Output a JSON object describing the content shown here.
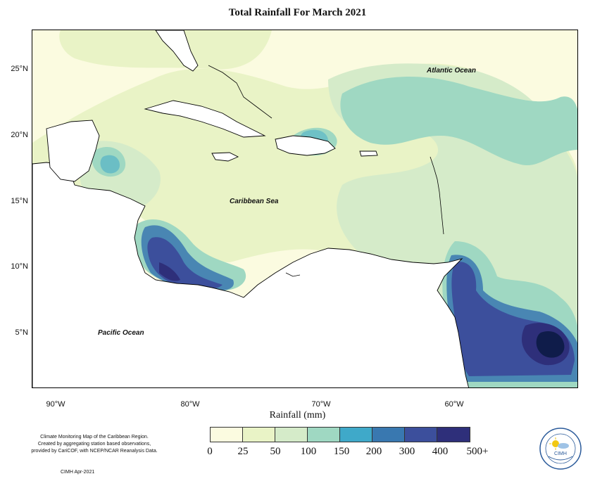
{
  "title": "Total Rainfall For March 2021",
  "map": {
    "ocean_labels": {
      "atlantic": "Atlantic Ocean",
      "caribbean": "Caribbean Sea",
      "pacific": "Pacific Ocean"
    },
    "latitude_ticks": [
      "25°N",
      "20°N",
      "15°N",
      "10°N",
      "5°N"
    ],
    "longitude_ticks": [
      "90°W",
      "80°W",
      "70°W",
      "60°W"
    ]
  },
  "legend": {
    "axis_label": "Rainfall (mm)",
    "breaks": [
      "0",
      "25",
      "50",
      "100",
      "150",
      "200",
      "300",
      "400",
      "500+"
    ],
    "colors": [
      "#fbfbe0",
      "#e9f3c6",
      "#d5ebc9",
      "#9fd8c2",
      "#3fa9c9",
      "#3978b0",
      "#3c4f9c",
      "#2e2f7a",
      "#0f1c4a"
    ]
  },
  "credits": {
    "line1": "Climate Monitoring Map of the Caribbean Region.",
    "line2": "Created by aggregating station based observations,",
    "line3": "provided by CariCOF, with NCEP/NCAR Reanalysis Data.",
    "stamp": "CIMH Apr-2021"
  },
  "logo": {
    "text": "CIMH",
    "ring_text": "Caribbean Institute for Meteorology and Hydrology",
    "icon": "sun-cloud-logo-icon"
  }
}
